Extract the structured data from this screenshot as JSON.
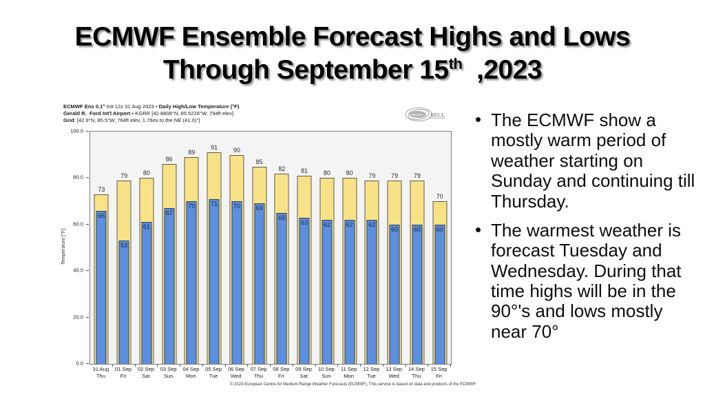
{
  "slide": {
    "title": {
      "line1": "ECMWF Ensemble Forecast Highs and Lows",
      "line2_pre": "Through September 15",
      "line2_sup": "th",
      "line2_post": "  ,2023"
    },
    "bullets": [
      "The ECMWF show a mostly warm period of weather starting on Sunday and continuing till Thursday.",
      "The warmest weather is forecast Tuesday  and Wednesday. During that time highs will be in the 90°'s and lows mostly near 70°"
    ],
    "bullet_glyph": "•"
  },
  "chart": {
    "header": {
      "line1_bold1": "ECMWF Ens 0.1°",
      "line1_reg": " Init 12z 31 Aug 2023 • ",
      "line1_bold2": "Daily High/Low Temperature (°F)",
      "line2_bold": "Gerald R.  Ford Int'l Airport",
      "line2_reg": " • KGRR [42.8808°N, 85.5228°W, 794ft elev]",
      "line3_bold": "Grid",
      "line3_reg": ": [42.9°N, 85.5°W, 764ft elev, 1.76mi to the NE (41.0)°]"
    },
    "logo_text_left": "Weather",
    "logo_text_right": "BELL",
    "ylabel": "Temperature [°F]",
    "yticks": [
      "100.0",
      "80.0",
      "60.0",
      "40.0",
      "20.0",
      "0.0"
    ],
    "copyright": "© 2023 European Centre for Medium-Range Weather Forecasts (ECMWF). This service is based on data and products of the ECMWF."
  },
  "chart_data": {
    "type": "bar",
    "title": "ECMWF Ens 0.1° Init 12z 31 Aug 2023 • Daily High/Low Temperature (°F)",
    "subtitle": "Gerald R. Ford Int'l Airport • KGRR [42.8808°N, 85.5228°W, 794ft elev]",
    "xlabel": "",
    "ylabel": "Temperature [°F]",
    "ylim": [
      0,
      100
    ],
    "grid": false,
    "legend": "none",
    "categories": [
      {
        "date": "31 Aug",
        "day": "Thu"
      },
      {
        "date": "01 Sep",
        "day": "Fri"
      },
      {
        "date": "02 Sep",
        "day": "Sat"
      },
      {
        "date": "03 Sep",
        "day": "Sun"
      },
      {
        "date": "04 Sep",
        "day": "Mon"
      },
      {
        "date": "05 Sep",
        "day": "Tue"
      },
      {
        "date": "06 Sep",
        "day": "Wed"
      },
      {
        "date": "07 Sep",
        "day": "Thu"
      },
      {
        "date": "08 Sep",
        "day": "Fri"
      },
      {
        "date": "09 Sep",
        "day": "Sat"
      },
      {
        "date": "10 Sep",
        "day": "Sun"
      },
      {
        "date": "11 Sep",
        "day": "Mon"
      },
      {
        "date": "12 Sep",
        "day": "Tue"
      },
      {
        "date": "13 Sep",
        "day": "Wed"
      },
      {
        "date": "14 Sep",
        "day": "Thu"
      },
      {
        "date": "15 Sep",
        "day": "Fri"
      }
    ],
    "series": [
      {
        "name": "Daily High",
        "color": "#F8E287",
        "values": [
          73,
          79,
          80,
          86,
          89,
          91,
          90,
          85,
          82,
          81,
          80,
          80,
          79,
          79,
          79,
          70
        ]
      },
      {
        "name": "Daily Low",
        "color": "#5C8FE0",
        "values": [
          66,
          53,
          61,
          67,
          70,
          71,
          70,
          69,
          65,
          63,
          62,
          62,
          62,
          60,
          60,
          60
        ]
      }
    ]
  }
}
